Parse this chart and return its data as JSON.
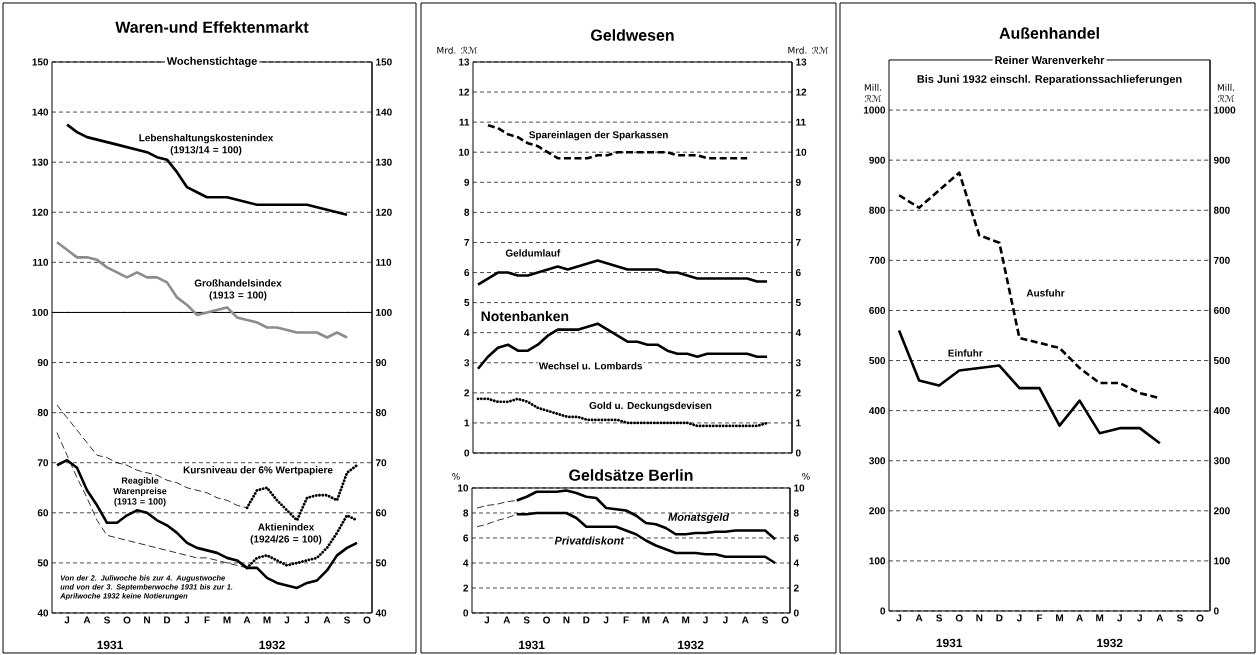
{
  "chart_data": [
    {
      "type": "line",
      "title": "Waren-und Effektenmarkt",
      "subtitle": "Wochenstichtage",
      "categories": [
        null,
        "J",
        null,
        "A",
        null,
        "S",
        null,
        "O",
        null,
        "N",
        null,
        "D",
        null,
        "J",
        null,
        "F",
        null,
        "M",
        null,
        "A",
        null,
        "M",
        null,
        "J",
        null,
        "J",
        null,
        "A",
        null,
        "S",
        null,
        "O"
      ],
      "ylim": [
        40,
        150
      ],
      "yticks": [
        40,
        50,
        60,
        70,
        80,
        90,
        100,
        110,
        120,
        130,
        140,
        150
      ],
      "y2lim": [
        40,
        150
      ],
      "y2ticks": [
        40,
        50,
        60,
        70,
        80,
        90,
        100,
        110,
        120,
        130,
        140,
        150
      ],
      "grid": "y",
      "ref_lines": [
        {
          "axis": "y",
          "value": 100,
          "line_style": "solid"
        }
      ],
      "series": [
        {
          "name": "Lebenshaltungskostenindex (1913/14 = 100)",
          "color": "#000000",
          "line_style": "solid",
          "values": [
            null,
            137.5,
            136,
            135,
            134.5,
            134,
            133.5,
            133,
            132.5,
            132,
            131,
            130.5,
            128,
            125,
            124,
            123,
            123,
            123,
            122.5,
            122,
            121.5,
            121.5,
            121.5,
            121.5,
            121.5,
            121.5,
            121,
            120.5,
            120,
            119.5,
            null,
            null
          ]
        },
        {
          "name": "Großhandelsindex (1913 = 100)",
          "color": "#8c8c8c",
          "line_style": "solid",
          "values": [
            114,
            112.5,
            111,
            111,
            110.5,
            109,
            108,
            107,
            108,
            107,
            107,
            106,
            103,
            101.5,
            99.5,
            100,
            100.5,
            101,
            99,
            98.5,
            98,
            97,
            97,
            96.5,
            96,
            96,
            96,
            95,
            96,
            95,
            null,
            null
          ]
        },
        {
          "name": "Reagible Warenpreise (1913 = 100)",
          "color": "#000000",
          "line_style": "solid",
          "values": [
            69.5,
            70.5,
            69,
            64.5,
            61.5,
            58,
            58,
            59.5,
            60.5,
            60,
            58.5,
            57.5,
            56,
            54,
            53,
            52.5,
            52,
            51,
            50.5,
            49,
            49,
            47,
            46,
            45.5,
            45,
            46,
            46.5,
            48.5,
            51.5,
            53,
            54,
            null
          ]
        },
        {
          "name": "Kursniveau der 6% Wertpapiere",
          "color": "#000000",
          "line_style": "dotted",
          "values": [
            null,
            null,
            null,
            null,
            null,
            null,
            null,
            null,
            null,
            null,
            null,
            null,
            null,
            null,
            null,
            null,
            null,
            null,
            null,
            61,
            64.5,
            65,
            62.5,
            60.5,
            58.5,
            63,
            63.5,
            63.5,
            62.5,
            68,
            69.5,
            null
          ]
        },
        {
          "name": "Aktienindex (1924/26 = 100)",
          "color": "#000000",
          "line_style": "dotted",
          "values": [
            null,
            null,
            null,
            null,
            null,
            null,
            null,
            null,
            null,
            null,
            null,
            null,
            null,
            null,
            null,
            null,
            null,
            null,
            null,
            49,
            51,
            51.5,
            50.5,
            49.5,
            50,
            50.5,
            51,
            53,
            56,
            59.5,
            58.5,
            null
          ]
        },
        {
          "color": "#000000",
          "line_style": "dashed",
          "values": [
            81.5,
            79,
            76.5,
            74,
            71.5,
            71,
            70,
            69.5,
            68.5,
            68,
            67.5,
            66.5,
            66,
            65,
            64.5,
            64,
            63,
            62.5,
            61.5,
            61,
            null,
            null,
            null,
            null,
            null,
            null,
            null,
            null,
            null,
            null,
            null,
            null
          ]
        },
        {
          "color": "#000000",
          "line_style": "dashed",
          "values": [
            76,
            71.5,
            67,
            63,
            58.5,
            55.5,
            55,
            54.5,
            54,
            53.5,
            53,
            52.5,
            52,
            51.5,
            51,
            51,
            50.5,
            50,
            49.5,
            49,
            null,
            null,
            null,
            null,
            null,
            null,
            null,
            null,
            null,
            null,
            null,
            null
          ]
        }
      ],
      "annotations": [
        "Von der 2. Juliwoche bis zur 4. Augustwoche und von der 3. Septemberwoche 1931 bis zur 1. Aprilwoche 1932 keine Notierungen",
        "1931",
        "1932"
      ]
    },
    {
      "type": "line",
      "title": "Geldwesen",
      "ylabel": "Mrd. ℛℳ",
      "y2label": "Mrd. ℛℳ",
      "categories": [
        null,
        null,
        null,
        null,
        null,
        null,
        null,
        null,
        null,
        null,
        null,
        null,
        null,
        null,
        null,
        null,
        null,
        null,
        null,
        null,
        null,
        null,
        null,
        null,
        null,
        null,
        null,
        null,
        null,
        null,
        null,
        null
      ],
      "ylim": [
        0,
        13
      ],
      "yticks": [
        0,
        1,
        2,
        3,
        4,
        5,
        6,
        7,
        8,
        9,
        10,
        11,
        12,
        13
      ],
      "y2lim": [
        0,
        13
      ],
      "y2ticks": [
        0,
        1,
        2,
        3,
        4,
        5,
        6,
        7,
        8,
        9,
        10,
        11,
        12,
        13
      ],
      "tick_labels": "y",
      "grid": "y",
      "series": [
        {
          "name": "Spareinlagen der Sparkassen",
          "color": "#000000",
          "line_style": "dashed",
          "values": [
            null,
            10.9,
            10.8,
            10.6,
            10.5,
            10.3,
            10.2,
            10.0,
            9.8,
            9.8,
            9.8,
            9.8,
            9.9,
            9.9,
            10.0,
            10.0,
            10.0,
            10.0,
            10.0,
            10.0,
            9.9,
            9.9,
            9.9,
            9.8,
            9.8,
            9.8,
            9.8,
            9.8,
            null,
            null,
            null,
            null
          ]
        },
        {
          "name": "Geldumlauf",
          "color": "#000000",
          "line_style": "solid",
          "values": [
            5.6,
            5.8,
            6.0,
            6.0,
            5.9,
            5.9,
            6.0,
            6.1,
            6.2,
            6.1,
            6.2,
            6.3,
            6.4,
            6.3,
            6.2,
            6.1,
            6.1,
            6.1,
            6.1,
            6.0,
            6.0,
            5.9,
            5.8,
            5.8,
            5.8,
            5.8,
            5.8,
            5.8,
            5.7,
            5.7,
            null,
            null
          ]
        },
        {
          "name": "Wechsel u. Lombards",
          "color": "#000000",
          "line_style": "solid",
          "values": [
            2.8,
            3.2,
            3.5,
            3.6,
            3.4,
            3.4,
            3.6,
            3.9,
            4.1,
            4.1,
            4.1,
            4.2,
            4.3,
            4.1,
            3.9,
            3.7,
            3.7,
            3.6,
            3.6,
            3.4,
            3.3,
            3.3,
            3.2,
            3.3,
            3.3,
            3.3,
            3.3,
            3.3,
            3.2,
            3.2,
            null,
            null
          ]
        },
        {
          "name": "Gold u. Deckungsdevisen",
          "color": "#000000",
          "line_style": "dotted",
          "values": [
            1.8,
            1.8,
            1.7,
            1.7,
            1.8,
            1.7,
            1.5,
            1.4,
            1.3,
            1.2,
            1.2,
            1.1,
            1.1,
            1.1,
            1.1,
            1.0,
            1.0,
            1.0,
            1.0,
            1.0,
            1.0,
            1.0,
            0.9,
            0.9,
            0.9,
            0.9,
            0.9,
            0.9,
            0.9,
            1.0,
            null,
            null
          ]
        }
      ],
      "annotations": [
        "Notenbanken"
      ]
    },
    {
      "type": "line",
      "title": "Geldsätze Berlin",
      "ylabel": "%",
      "y2label": "%",
      "categories": [
        null,
        "J",
        null,
        "A",
        null,
        "S",
        null,
        "O",
        null,
        "N",
        null,
        "D",
        null,
        "J",
        null,
        "F",
        null,
        "M",
        null,
        "A",
        null,
        "M",
        null,
        "J",
        null,
        "J",
        null,
        "A",
        null,
        "S",
        null,
        "O"
      ],
      "ylim": [
        0,
        10
      ],
      "yticks": [
        0,
        2,
        4,
        6,
        8,
        10
      ],
      "y2lim": [
        0,
        10
      ],
      "y2ticks": [
        0,
        2,
        4,
        6,
        8,
        10
      ],
      "grid": "y",
      "series": [
        {
          "name": "Monatsgeld",
          "color": "#000000",
          "line_style": "solid",
          "values": [
            null,
            null,
            null,
            null,
            9.0,
            9.3,
            9.7,
            9.7,
            9.7,
            9.8,
            9.6,
            9.3,
            9.2,
            8.4,
            8.3,
            8.2,
            7.8,
            7.2,
            7.1,
            6.8,
            6.3,
            6.3,
            6.4,
            6.4,
            6.5,
            6.5,
            6.6,
            6.6,
            6.6,
            6.6,
            5.9,
            null
          ]
        },
        {
          "name": "Privatdiskont",
          "color": "#000000",
          "line_style": "solid",
          "values": [
            null,
            null,
            null,
            null,
            7.9,
            7.9,
            8.0,
            8.0,
            8.0,
            8.0,
            7.6,
            6.9,
            6.9,
            6.9,
            6.9,
            6.6,
            6.3,
            5.8,
            5.4,
            5.1,
            4.8,
            4.8,
            4.8,
            4.7,
            4.7,
            4.5,
            4.5,
            4.5,
            4.5,
            4.5,
            4.0,
            null
          ]
        },
        {
          "color": "#000000",
          "line_style": "dashed",
          "values": [
            8.4,
            8.6,
            8.7,
            8.9,
            9.0,
            null,
            null,
            null,
            null,
            null,
            null,
            null,
            null,
            null,
            null,
            null,
            null,
            null,
            null,
            null,
            null,
            null,
            null,
            null,
            null,
            null,
            null,
            null,
            null,
            null,
            null,
            null
          ]
        },
        {
          "color": "#000000",
          "line_style": "dashed",
          "values": [
            6.9,
            7.1,
            7.4,
            7.6,
            7.9,
            null,
            null,
            null,
            null,
            null,
            null,
            null,
            null,
            null,
            null,
            null,
            null,
            null,
            null,
            null,
            null,
            null,
            null,
            null,
            null,
            null,
            null,
            null,
            null,
            null,
            null,
            null
          ]
        }
      ],
      "annotations": [
        "1931",
        "1932"
      ]
    },
    {
      "type": "line",
      "title": "Außenhandel",
      "subtitle": "Reiner Warenverkehr",
      "ylabel": "Mill. ℛℳ",
      "y2label": "Mill. ℛℳ",
      "categories": [
        "J",
        "A",
        "S",
        "O",
        "N",
        "D",
        "J",
        "F",
        "M",
        "A",
        "M",
        "J",
        "J",
        "A",
        "S",
        "O"
      ],
      "ylim": [
        0,
        1100
      ],
      "yticks": [
        0,
        100,
        200,
        300,
        400,
        500,
        600,
        700,
        800,
        900,
        1000
      ],
      "y2lim": [
        0,
        1100
      ],
      "y2ticks": [
        0,
        100,
        200,
        300,
        400,
        500,
        600,
        700,
        800,
        900,
        1000
      ],
      "grid": "y",
      "series": [
        {
          "name": "Einfuhr",
          "color": "#000000",
          "line_style": "solid",
          "values": [
            560,
            460,
            450,
            480,
            485,
            490,
            445,
            445,
            370,
            420,
            355,
            365,
            365,
            335,
            null,
            null
          ]
        },
        {
          "name": "Ausfuhr",
          "color": "#000000",
          "line_style": "dashed",
          "values": [
            830,
            805,
            840,
            875,
            750,
            735,
            545,
            535,
            525,
            485,
            455,
            455,
            435,
            425,
            null,
            null
          ]
        }
      ],
      "annotations": [
        "Bis Juni 1932 einschl. Reparationssachlieferungen",
        "1931",
        "1932"
      ]
    }
  ]
}
